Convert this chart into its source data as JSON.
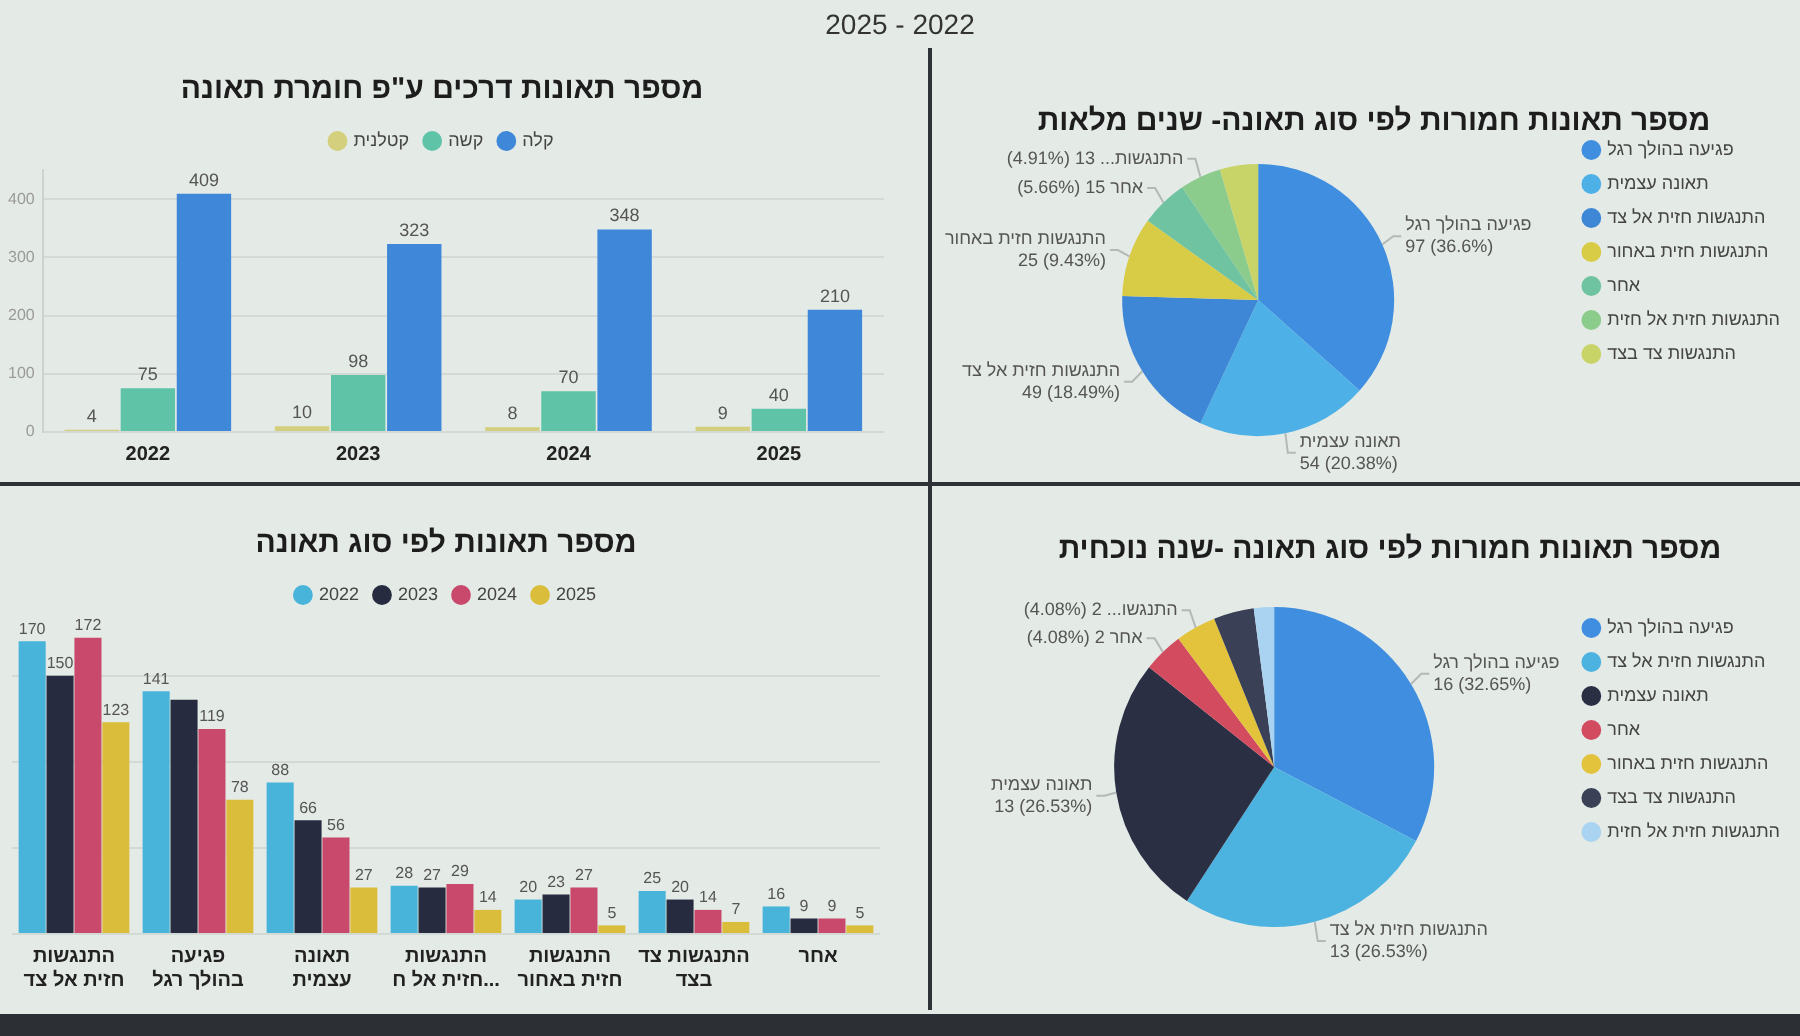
{
  "chart_data": [
    {
      "type": "bar",
      "title": "מספר תאונות דרכים ע\"פ חומרת תאונה",
      "annotations": [
        "2025 - 2022"
      ],
      "categories": [
        "2022",
        "2023",
        "2024",
        "2025"
      ],
      "series": [
        {
          "name": "קטלנית",
          "color": "#d4cf7c",
          "values": [
            4,
            10,
            8,
            9
          ]
        },
        {
          "name": "קשה",
          "color": "#5ec3a7",
          "values": [
            75,
            98,
            70,
            40
          ]
        },
        {
          "name": "קלה",
          "color": "#3f87d9",
          "values": [
            409,
            323,
            348,
            210
          ]
        }
      ],
      "ylim": [
        0,
        450
      ],
      "yticks": [
        0,
        100,
        200,
        300,
        400
      ],
      "grid": "y",
      "legend": "top",
      "data_labels": true
    },
    {
      "type": "pie",
      "title": "מספר תאונות חמורות לפי סוג תאונה- שנים מלאות",
      "categories": [
        "פגיעה בהולך רגל",
        "תאונה עצמית",
        "התנגשות חזית אל צד",
        "התנגשות חזית באחור",
        "אחר",
        "התנגשות חזית אל חזית",
        "התנגשות צד בצד"
      ],
      "values": [
        97,
        54,
        49,
        25,
        15,
        13,
        12
      ],
      "colors": [
        "#3f8ee0",
        "#4db0e6",
        "#3d87d6",
        "#d8cb45",
        "#6fc3a1",
        "#8bcb8c",
        "#c8d468"
      ],
      "value_labels": [
        "פגיעה בהולך רגל\n97 (36.6%)",
        "תאונה עצמית\n54 (20.38%)",
        "התנגשות חזית אל צד\n49 (18.49%)",
        "התנגשות חזית באחור\n25 (9.43%)",
        "אחר 15 (5.66%)",
        "התנגשות... 13 (4.91%)",
        null
      ],
      "legend": "right"
    },
    {
      "type": "bar",
      "title": "מספר תאונות לפי סוג תאונה",
      "categories": [
        "התנגשות חזית אל צד",
        "פגיעה בהולך רגל",
        "תאונה עצמית",
        "התנגשות חזית אל ח...",
        "התנגשות חזית באחור",
        "התנגשות צד בצד",
        "אחר"
      ],
      "series": [
        {
          "name": "2022",
          "color": "#48b4da",
          "values": [
            170,
            141,
            88,
            28,
            20,
            25,
            16
          ],
          "value_labels": [
            "170",
            "141",
            "88",
            "28",
            "20",
            "25",
            "16"
          ]
        },
        {
          "name": "2023",
          "color": "#262b40",
          "values": [
            150,
            136,
            66,
            27,
            23,
            20,
            9
          ],
          "value_labels": [
            "150",
            null,
            "66",
            "27",
            "23",
            "20",
            "9"
          ]
        },
        {
          "name": "2024",
          "color": "#c8496b",
          "values": [
            172,
            119,
            56,
            29,
            27,
            14,
            9
          ],
          "value_labels": [
            "172",
            "119",
            "56",
            "29",
            "27",
            "14",
            "9"
          ]
        },
        {
          "name": "2025",
          "color": "#dbbd3c",
          "values": [
            123,
            78,
            27,
            14,
            5,
            7,
            5
          ],
          "value_labels": [
            "123",
            "78",
            "27",
            "14",
            "5",
            "7",
            "5"
          ]
        }
      ],
      "yticks": [
        0,
        50,
        100,
        150
      ],
      "grid": "y",
      "tick_labels": "x",
      "legend": "top"
    },
    {
      "type": "pie",
      "title": "מספר תאונות חמורות לפי סוג תאונה -שנה נוכחית",
      "categories": [
        "פגיעה בהולך רגל",
        "התנגשות חזית אל צד",
        "תאונה עצמית",
        "אחר",
        "התנגשות חזית באחור",
        "התנגשות צד בצד",
        "התנגשות חזית אל חזית"
      ],
      "values": [
        16,
        13,
        13,
        2,
        2,
        2,
        1
      ],
      "colors": [
        "#3f8ee0",
        "#4cb3e0",
        "#2a2f44",
        "#d24b5f",
        "#e3c33c",
        "#3a4055",
        "#a9d3f0"
      ],
      "value_labels": [
        "פגיעה בהולך רגל\n16 (32.65%)",
        "התנגשות חזית אל צד\n13 (26.53%)",
        "תאונה עצמית\n13 (26.53%)",
        "אחר 2 (4.08%)",
        "התנגשו... 2 (4.08%)",
        null,
        null
      ],
      "legend": "right"
    }
  ]
}
